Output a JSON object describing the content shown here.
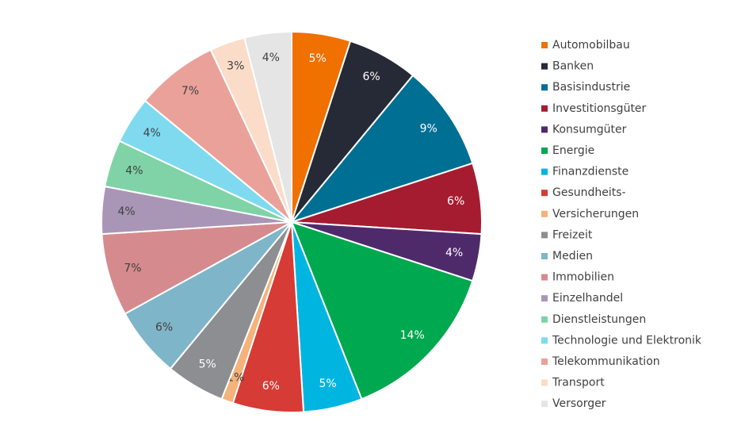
{
  "chart_data": {
    "type": "pie",
    "categories": [
      "Automobilbau",
      "Banken",
      "Basisindustrie",
      "Investitionsgüter",
      "Konsumgüter",
      "Energie",
      "Finanzdienste",
      "Gesundheits-",
      "Versicherungen",
      "Freizeit",
      "Medien",
      "Immobilien",
      "Einzelhandel",
      "Dienstleistungen",
      "Technologie und Elektronik",
      "Telekommunikation",
      "Transport",
      "Versorger"
    ],
    "values": [
      5,
      6,
      9,
      6,
      4,
      14,
      5,
      6,
      1,
      5,
      6,
      7,
      4,
      4,
      4,
      7,
      3,
      4
    ],
    "value_labels": [
      "5%",
      "6%",
      "9%",
      "6%",
      "4%",
      "14%",
      "5%",
      "6%",
      "1%",
      "5%",
      "6%",
      "7%",
      "4%",
      "4%",
      "4%",
      "7%",
      "3%",
      "4%"
    ],
    "colors": [
      "#f07000",
      "#262a36",
      "#006f94",
      "#a51c30",
      "#4f2a6b",
      "#00a84f",
      "#00b6e0",
      "#d63b35",
      "#f5b27a",
      "#8d8e92",
      "#7fb5c8",
      "#d58b8e",
      "#a996b6",
      "#7fd3a7",
      "#7fdaf0",
      "#eaa19a",
      "#fbdcc8",
      "#e5e5e5"
    ],
    "legend": "right"
  }
}
